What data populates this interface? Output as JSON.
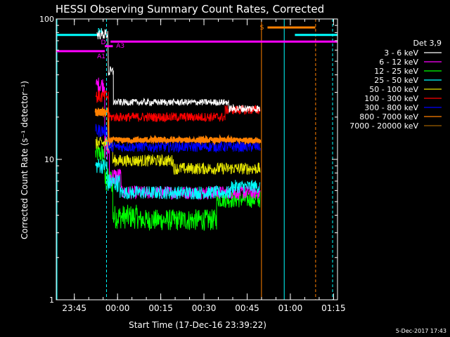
{
  "chart_data": {
    "type": "line",
    "title": "HESSI Observing Summary Count Rates, Corrected",
    "xlabel": "Start Time (17-Dec-16 23:39:22)",
    "ylabel": "Corrected Count Rate (s⁻¹ detector⁻¹)",
    "footer": "5-Dec-2017 17:43",
    "y_scale": "log",
    "ylim": [
      1,
      100
    ],
    "xlim_minutes": [
      -0.65,
      97
    ],
    "x_tick_labels": [
      {
        "label": "23:45",
        "t": 5.63
      },
      {
        "label": "00:00",
        "t": 20.63
      },
      {
        "label": "00:15",
        "t": 35.63
      },
      {
        "label": "00:30",
        "t": 50.63
      },
      {
        "label": "00:45",
        "t": 65.63
      },
      {
        "label": "01:00",
        "t": 80.63
      },
      {
        "label": "01:15",
        "t": 95.63
      }
    ],
    "y_tick_labels": [
      {
        "label": "100",
        "v": 100
      },
      {
        "label": "10",
        "v": 10
      },
      {
        "label": "1",
        "v": 1
      }
    ],
    "legend": {
      "title": "Det 3,9",
      "position": "right",
      "entries": [
        {
          "label": "3 - 6 keV",
          "color": "#ffffff"
        },
        {
          "label": "6 - 12 keV",
          "color": "#ff00ff"
        },
        {
          "label": "12 - 25 keV",
          "color": "#00ff00"
        },
        {
          "label": "25 - 50 keV",
          "color": "#00ffff"
        },
        {
          "label": "50 - 100 keV",
          "color": "#e6e600"
        },
        {
          "label": "100 - 300 keV",
          "color": "#ff0000"
        },
        {
          "label": "300 - 800 keV",
          "color": "#0000ff"
        },
        {
          "label": "800 - 7000 keV",
          "color": "#ff8000"
        },
        {
          "label": "7000 - 20000 keV",
          "color": "#a06000"
        }
      ]
    },
    "series": [
      {
        "name": "3 - 6 keV",
        "color": "#ffffff",
        "segments": [
          {
            "start": 13.5,
            "end": 17.3,
            "level": 78,
            "noise": 0.08
          },
          {
            "start": 17.5,
            "end": 19.2,
            "level": 42,
            "noise": 0.08
          },
          {
            "start": 19.2,
            "end": 59.2,
            "level": 25.5,
            "noise": 0.05
          },
          {
            "start": 59.2,
            "end": 70.2,
            "level": 23,
            "noise": 0.06
          }
        ]
      },
      {
        "name": "6 - 12 keV",
        "color": "#ff00ff",
        "segments": [
          {
            "start": 13.2,
            "end": 16.2,
            "level": 34,
            "noise": 0.12
          },
          {
            "start": 16.2,
            "end": 17.8,
            "level": 12,
            "noise": 0.2
          },
          {
            "start": 17.8,
            "end": 22.0,
            "level": 7.5,
            "noise": 0.15
          },
          {
            "start": 22.0,
            "end": 70.2,
            "level": 5.8,
            "noise": 0.1
          }
        ]
      },
      {
        "name": "12 - 25 keV",
        "color": "#00ff00",
        "segments": [
          {
            "start": 13.0,
            "end": 16.2,
            "level": 11,
            "noise": 0.15
          },
          {
            "start": 16.2,
            "end": 19.0,
            "level": 7,
            "noise": 0.2
          },
          {
            "start": 19.0,
            "end": 28.0,
            "level": 3.9,
            "noise": 0.18
          },
          {
            "start": 28.0,
            "end": 55.0,
            "level": 3.7,
            "noise": 0.16
          },
          {
            "start": 55.0,
            "end": 70.2,
            "level": 5.2,
            "noise": 0.13
          }
        ]
      },
      {
        "name": "25 - 50 keV",
        "color": "#00ffff",
        "segments": [
          {
            "start": 13.0,
            "end": 17.0,
            "level": 9,
            "noise": 0.12
          },
          {
            "start": 17.0,
            "end": 21.5,
            "level": 6.8,
            "noise": 0.14
          },
          {
            "start": 21.5,
            "end": 60.0,
            "level": 5.8,
            "noise": 0.1
          },
          {
            "start": 60.0,
            "end": 70.2,
            "level": 6.4,
            "noise": 0.1
          }
        ]
      },
      {
        "name": "50 - 100 keV",
        "color": "#e6e600",
        "segments": [
          {
            "start": 13.0,
            "end": 19.0,
            "level": 13,
            "noise": 0.1
          },
          {
            "start": 19.0,
            "end": 40.0,
            "level": 9.8,
            "noise": 0.09
          },
          {
            "start": 40.0,
            "end": 70.2,
            "level": 8.6,
            "noise": 0.09
          }
        ]
      },
      {
        "name": "100 - 300 keV",
        "color": "#ff0000",
        "segments": [
          {
            "start": 13.0,
            "end": 17.5,
            "level": 28,
            "noise": 0.1
          },
          {
            "start": 17.5,
            "end": 58.0,
            "level": 20,
            "noise": 0.07
          },
          {
            "start": 58.0,
            "end": 70.2,
            "level": 22.5,
            "noise": 0.07
          }
        ]
      },
      {
        "name": "300 - 800 keV",
        "color": "#0000ff",
        "segments": [
          {
            "start": 13.0,
            "end": 17.5,
            "level": 16,
            "noise": 0.1
          },
          {
            "start": 17.5,
            "end": 70.2,
            "level": 12.3,
            "noise": 0.08
          }
        ]
      },
      {
        "name": "800 - 7000 keV",
        "color": "#ff8000",
        "segments": [
          {
            "start": 13.0,
            "end": 17.5,
            "level": 21.5,
            "noise": 0.06
          },
          {
            "start": 17.5,
            "end": 70.2,
            "level": 13.7,
            "noise": 0.04
          }
        ]
      },
      {
        "name": "7000 - 20000 keV",
        "color": "#a06000",
        "segments": []
      }
    ],
    "flag_bars": [
      {
        "label": "N",
        "color": "#00ffff",
        "level": 77,
        "start": -0.65,
        "end": 13.5
      },
      {
        "label": "",
        "color": "#00ffff",
        "level": 77,
        "start": 82.2,
        "end": 96.9
      },
      {
        "label": "D",
        "color": "#ff00ff",
        "level": 64,
        "start": 16.2,
        "end": 19.0
      },
      {
        "label": "A1",
        "color": "#ff00ff",
        "level": 59,
        "start": -0.65,
        "end": 16.2
      },
      {
        "label": "A3",
        "color": "#ff00ff",
        "level": 69,
        "start": 18.2,
        "end": 96.9
      },
      {
        "label": "S",
        "color": "#ff8000",
        "level": 87,
        "start": 72.7,
        "end": 89.3
      }
    ],
    "vertical_lines": [
      {
        "t": -0.4,
        "color": "#00ffff",
        "style": "solid"
      },
      {
        "t": 16.8,
        "color": "#00ffff",
        "style": "dashed"
      },
      {
        "t": 70.6,
        "color": "#ff8000",
        "style": "solid"
      },
      {
        "t": 78.5,
        "color": "#00ffff",
        "style": "solid"
      },
      {
        "t": 89.4,
        "color": "#ff8000",
        "style": "dashed"
      },
      {
        "t": 95.3,
        "color": "#00ffff",
        "style": "dashed"
      }
    ]
  }
}
